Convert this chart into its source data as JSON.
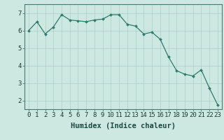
{
  "x": [
    0,
    1,
    2,
    3,
    4,
    5,
    6,
    7,
    8,
    9,
    10,
    11,
    12,
    13,
    14,
    15,
    16,
    17,
    18,
    19,
    20,
    21,
    22,
    23
  ],
  "y": [
    6.0,
    6.5,
    5.8,
    6.2,
    6.9,
    6.6,
    6.55,
    6.5,
    6.6,
    6.65,
    6.9,
    6.9,
    6.35,
    6.25,
    5.8,
    5.9,
    5.5,
    4.5,
    3.7,
    3.5,
    3.4,
    3.75,
    2.7,
    1.75
  ],
  "xlabel": "Humidex (Indice chaleur)",
  "xlim": [
    -0.5,
    23.5
  ],
  "ylim": [
    1.5,
    7.5
  ],
  "yticks": [
    2,
    3,
    4,
    5,
    6,
    7
  ],
  "xticks": [
    0,
    1,
    2,
    3,
    4,
    5,
    6,
    7,
    8,
    9,
    10,
    11,
    12,
    13,
    14,
    15,
    16,
    17,
    18,
    19,
    20,
    21,
    22,
    23
  ],
  "line_color": "#2d7a6e",
  "marker_color": "#2d7a6e",
  "bg_color": "#cce8e0",
  "grid_color_major": "#aacfc8",
  "grid_color_minor": "#bcddd6",
  "xlabel_fontsize": 7.5,
  "tick_fontsize": 6.5
}
